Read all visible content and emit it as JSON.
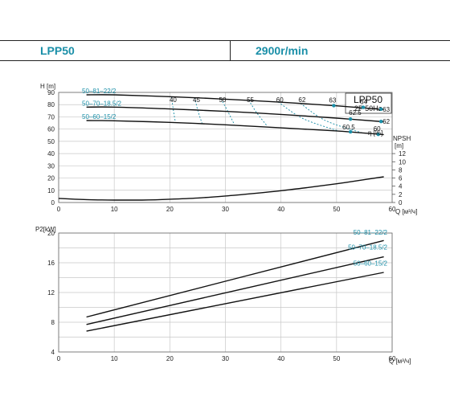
{
  "header": {
    "model": "LPP50",
    "speed": "2900r/min"
  },
  "chart_data": [
    {
      "type": "line",
      "id": "head",
      "ylabel": "H [m]",
      "xlabel": "Q [м³/ч]",
      "xlim": [
        0,
        60
      ],
      "ylim": [
        0,
        90
      ],
      "xticks": [
        0,
        10,
        20,
        30,
        40,
        50,
        60
      ],
      "yticks": [
        0,
        10,
        20,
        30,
        40,
        50,
        60,
        70,
        80,
        90
      ],
      "grid": true,
      "legend_box": {
        "title": "LPP50",
        "subtitle": "2P  50Hz"
      },
      "series": [
        {
          "name": "50–81–22/2",
          "color": "#111111",
          "x": [
            5,
            10,
            20,
            30,
            40,
            50,
            58.5
          ],
          "y": [
            88,
            88,
            86.5,
            84.5,
            82,
            79,
            76
          ]
        },
        {
          "name": "50–70–18.5/2",
          "color": "#111111",
          "x": [
            5,
            10,
            20,
            30,
            40,
            50,
            58.5
          ],
          "y": [
            78,
            78,
            76.5,
            74.5,
            72,
            69,
            66
          ]
        },
        {
          "name": "50–60–15/2",
          "color": "#111111",
          "x": [
            5,
            10,
            20,
            30,
            40,
            50,
            58.5
          ],
          "y": [
            67,
            66.8,
            65.5,
            63.5,
            61,
            58.5,
            55.5
          ]
        }
      ],
      "efficiency_label": "η [%]",
      "efficiency_contours": [
        {
          "label": "40",
          "x": [
            20.3,
            20.6,
            21.0
          ],
          "y": [
            86.5,
            76.5,
            65.5
          ]
        },
        {
          "label": "45",
          "x": [
            24.5,
            25.0,
            25.8
          ],
          "y": [
            85.8,
            75.8,
            64.8
          ]
        },
        {
          "label": "50",
          "x": [
            29.2,
            30.4,
            31.6
          ],
          "y": [
            84.8,
            74.8,
            63.8
          ]
        },
        {
          "label": "55",
          "x": [
            34.2,
            35.6,
            37.5
          ],
          "y": [
            83.7,
            73.6,
            62.6
          ]
        },
        {
          "label": "60",
          "x": [
            39.5,
            44.0,
            50.5
          ],
          "y": [
            82.2,
            68.5,
            58.3
          ]
        },
        {
          "label": "62",
          "x": [
            43.5,
            48.0,
            54.5
          ],
          "y": [
            81.0,
            67.0,
            57.0
          ]
        }
      ],
      "efficiency_points": [
        {
          "label": "63",
          "x": 49.5,
          "y": 79.2
        },
        {
          "label": "64",
          "x": 54.8,
          "y": 77.8
        },
        {
          "label": "63",
          "x": 58.0,
          "y": 76.3
        },
        {
          "label": "62.5",
          "x": 52.5,
          "y": 68.2
        },
        {
          "label": "62",
          "x": 58.0,
          "y": 66.2
        },
        {
          "label": "60.5",
          "x": 52.5,
          "y": 57.8
        },
        {
          "label": "60",
          "x": 57.5,
          "y": 55.7
        }
      ],
      "npsh": {
        "ylabel": "NPSH [m]",
        "ylim": [
          0,
          12
        ],
        "yticks": [
          0,
          2,
          4,
          6,
          8,
          10,
          12
        ],
        "x": [
          0,
          5,
          10,
          15,
          20,
          25,
          30,
          35,
          40,
          45,
          50,
          55,
          58.5
        ],
        "y": [
          1.0,
          0.7,
          0.6,
          0.6,
          0.8,
          1.1,
          1.6,
          2.2,
          2.9,
          3.7,
          4.6,
          5.6,
          6.3
        ]
      }
    },
    {
      "type": "line",
      "id": "power",
      "ylabel": "P2[kW]",
      "xlabel": "Q [м³/ч]",
      "xlim": [
        0,
        60
      ],
      "ylim": [
        4,
        20
      ],
      "xticks": [
        0,
        10,
        20,
        30,
        40,
        50,
        60
      ],
      "yticks": [
        4,
        8,
        12,
        16,
        20
      ],
      "grid": true,
      "series": [
        {
          "name": "50–81–22/2",
          "color": "#111111",
          "x": [
            5,
            58.5
          ],
          "y": [
            8.7,
            19.0
          ]
        },
        {
          "name": "50–70–18.5/2",
          "color": "#111111",
          "x": [
            5,
            58.5
          ],
          "y": [
            7.7,
            16.8
          ]
        },
        {
          "name": "50–60–15/2",
          "color": "#111111",
          "x": [
            5,
            58.5
          ],
          "y": [
            6.8,
            14.7
          ]
        }
      ]
    }
  ]
}
